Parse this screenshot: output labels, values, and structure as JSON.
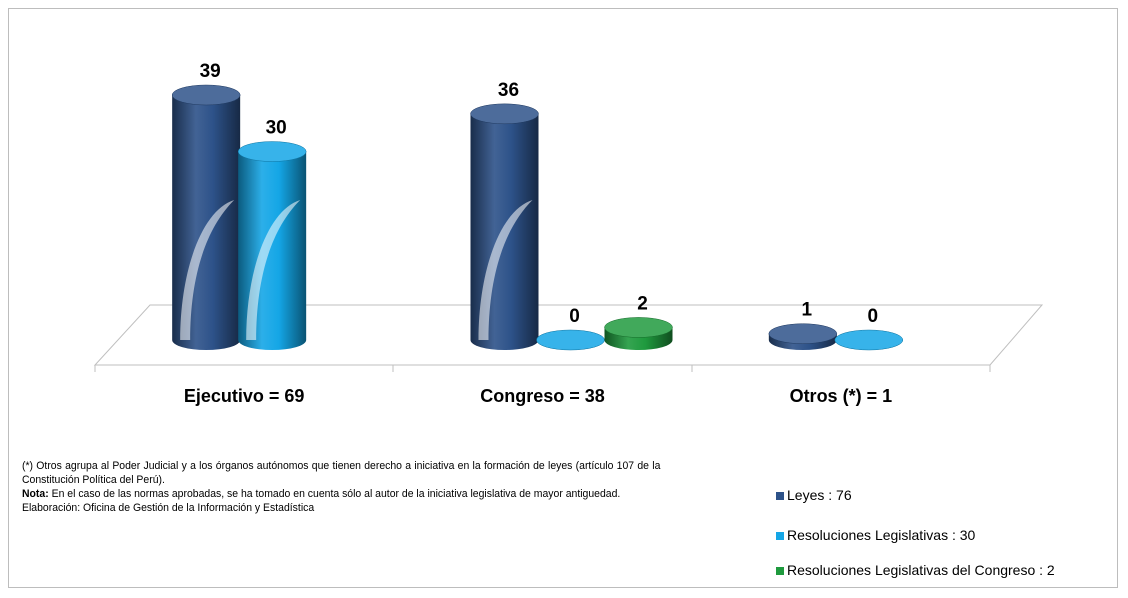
{
  "chart_data": {
    "type": "bar3d",
    "categories": [
      "Ejecutivo = 69",
      "Congreso = 38",
      "Otros (*) = 1"
    ],
    "series": [
      {
        "name": "Leyes : 76",
        "color": "#2d5289",
        "values": [
          39,
          36,
          1
        ]
      },
      {
        "name": "Resoluciones Legislativas : 30",
        "color": "#14a6e6",
        "values": [
          30,
          0,
          0
        ]
      },
      {
        "name": "Resoluciones Legislativas del Congreso : 2",
        "color": "#1f9a3e",
        "values": [
          null,
          2,
          null
        ]
      }
    ],
    "notes": {
      "footnote": "(*) Otros agrupa al Poder Judicial y a los órganos autónomos que tienen derecho a iniciativa en la formación de leyes (artículo 107 de la Constitución Política del Perú).",
      "nota_label": "Nota:",
      "nota_text": "En el caso de las normas aprobadas, se ha tomado en cuenta sólo al autor de la iniciativa legislativa de mayor antiguedad.",
      "source": "Elaboración: Oficina de Gestión de la Información y Estadística"
    }
  }
}
